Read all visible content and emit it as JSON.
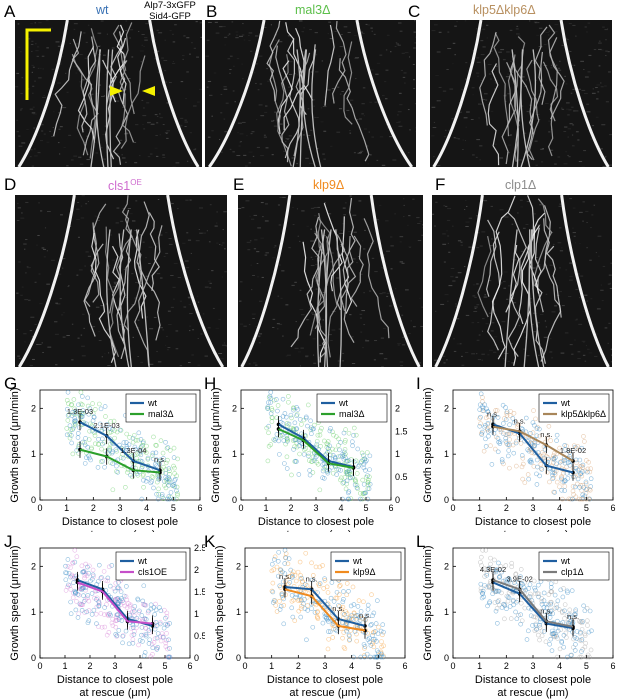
{
  "colors": {
    "wt": "#1f5fa0",
    "wt_light": "#3f8fc8",
    "mal3": "#2ca02c",
    "mal3_light": "#6ccf6c",
    "klp5klp6": "#a8865a",
    "klp5klp6_light": "#d9a679",
    "cls1": "#c54fc9",
    "cls1_light": "#d98ad9",
    "klp9": "#f08a1e",
    "klp9_light": "#f7a64a",
    "clp1": "#7b7b7b",
    "clp1_light": "#a9a9a9",
    "bracket": "#f5f100"
  },
  "kymographs": [
    {
      "id": "A",
      "letter": "A",
      "title": "wt",
      "title_color": "#3a72b4",
      "extra_label_1": "Alp7-3xGFP",
      "extra_label_2": "Sid4-GFP"
    },
    {
      "id": "B",
      "letter": "B",
      "title": "mal3Δ",
      "title_color": "#5cbf4a"
    },
    {
      "id": "C",
      "letter": "C",
      "title": "klp5Δklp6Δ",
      "title_color": "#b89060"
    },
    {
      "id": "D",
      "letter": "D",
      "title": "cls1",
      "title_sup": "OE",
      "title_color": "#cf6ccf"
    },
    {
      "id": "E",
      "letter": "E",
      "title": "klp9Δ",
      "title_color": "#f08a1e"
    },
    {
      "id": "F",
      "letter": "F",
      "title": "clp1Δ",
      "title_color": "#8c8c8c"
    }
  ],
  "common": {
    "xlabel_line1": "Distance to closest pole",
    "xlabel_line2": "at rescue (μm)",
    "ylabel": "Growth speed (μm/min)",
    "x_ticks": [
      "0",
      "1",
      "2",
      "3",
      "4",
      "5",
      "6"
    ],
    "y_ticks": [
      "0",
      "1",
      "2"
    ]
  },
  "chart_data": [
    {
      "panel": "G",
      "type": "scatter",
      "xlabel": "Distance to closest pole at rescue (μm)",
      "ylabel": "Growth speed (μm/min)",
      "xlim": [
        0,
        6
      ],
      "ylim": [
        0,
        2.4
      ],
      "x": [
        1.5,
        2.5,
        3.5,
        4.5
      ],
      "series": [
        {
          "name": "wt",
          "color": "#1f5fa0",
          "values": [
            1.7,
            1.4,
            0.85,
            0.65
          ]
        },
        {
          "name": "mal3Δ",
          "color": "#2ca02c",
          "values": [
            1.1,
            0.95,
            0.65,
            0.6
          ]
        }
      ],
      "annotations": [
        "1.3E-03",
        "2.1E-03",
        "1.3E-04",
        "n.s."
      ],
      "legend": [
        "wt",
        "mal3Δ"
      ],
      "legend_position": "top-right"
    },
    {
      "panel": "H",
      "type": "scatter",
      "xlabel": "Distance to closest pole at rescue (μm)",
      "ylabel": "Growth speed (μm/min)",
      "ylabel_right": "Growth speed (μm/min)",
      "xlim": [
        0,
        6
      ],
      "ylim": [
        0,
        2.4
      ],
      "ylim_right": [
        0,
        2.4
      ],
      "y_right_ticks": [
        "0",
        "0.5",
        "1",
        "1.5",
        "2"
      ],
      "x": [
        1.5,
        2.5,
        3.5,
        4.5
      ],
      "series": [
        {
          "name": "wt",
          "color": "#1f5fa0",
          "values": [
            1.65,
            1.35,
            0.85,
            0.72
          ]
        },
        {
          "name": "mal3Δ",
          "color": "#2ca02c",
          "values": [
            1.55,
            1.3,
            0.8,
            0.7
          ]
        }
      ],
      "legend": [
        "wt",
        "mal3Δ"
      ],
      "legend_position": "top-right"
    },
    {
      "panel": "I",
      "type": "scatter",
      "xlabel": "Distance to closest pole at rescue (μm)",
      "ylabel": "Growth speed (μm/min)",
      "xlim": [
        0,
        6
      ],
      "ylim": [
        0,
        2.4
      ],
      "x": [
        1.5,
        2.5,
        3.5,
        4.5
      ],
      "series": [
        {
          "name": "wt",
          "color": "#1f5fa0",
          "values": [
            1.65,
            1.45,
            0.75,
            0.6
          ]
        },
        {
          "name": "klp5Δklp6Δ",
          "color": "#a8865a",
          "values": [
            1.6,
            1.5,
            1.2,
            0.85
          ]
        }
      ],
      "annotations": [
        "n.s.",
        "n.s.",
        "n.s.",
        "1.8E-02"
      ],
      "legend": [
        "wt",
        "klp5Δklp6Δ"
      ],
      "legend_position": "top-right"
    },
    {
      "panel": "J",
      "type": "scatter",
      "xlabel": "Distance to closest pole at rescue (μm)",
      "ylabel": "Growth speed (μm/min)",
      "ylabel_right": "Growth speed (μm/min)",
      "xlim": [
        0,
        6
      ],
      "ylim": [
        0,
        2.4
      ],
      "ylim_right": [
        0,
        2.5
      ],
      "y_right_ticks": [
        "0",
        "0.5",
        "1",
        "1.5",
        "2",
        "2.5"
      ],
      "x": [
        1.5,
        2.5,
        3.5,
        4.5
      ],
      "series": [
        {
          "name": "wt",
          "color": "#1f5fa0",
          "values": [
            1.7,
            1.5,
            0.85,
            0.7
          ]
        },
        {
          "name": "cls1OE",
          "color": "#c54fc9",
          "values": [
            1.65,
            1.45,
            0.8,
            0.75
          ]
        }
      ],
      "legend": [
        "wt",
        "cls1OE"
      ],
      "legend_position": "top-right"
    },
    {
      "panel": "K",
      "type": "scatter",
      "xlabel": "Distance to closest pole at rescue (μm)",
      "ylabel": "Growth speed (μm/min)",
      "xlim": [
        0,
        6
      ],
      "ylim": [
        0,
        2.4
      ],
      "x": [
        1.5,
        2.5,
        3.5,
        4.5
      ],
      "series": [
        {
          "name": "wt",
          "color": "#1f5fa0",
          "values": [
            1.55,
            1.5,
            0.85,
            0.7
          ]
        },
        {
          "name": "klp9Δ",
          "color": "#f08a1e",
          "values": [
            1.5,
            1.35,
            0.7,
            0.6
          ]
        }
      ],
      "annotations": [
        "n.s.",
        "n.s.",
        "n.s.",
        "n.s."
      ],
      "legend": [
        "wt",
        "klp9Δ"
      ],
      "legend_position": "top-right"
    },
    {
      "panel": "L",
      "type": "scatter",
      "xlabel": "Distance to closest pole at rescue (μm)",
      "ylabel": "Growth speed (μm/min)",
      "xlim": [
        0,
        6
      ],
      "ylim": [
        0,
        2.4
      ],
      "x": [
        1.5,
        2.5,
        3.5,
        4.5
      ],
      "series": [
        {
          "name": "wt",
          "color": "#1f5fa0",
          "values": [
            1.65,
            1.4,
            0.75,
            0.65
          ]
        },
        {
          "name": "clp1Δ",
          "color": "#7b7b7b",
          "values": [
            1.7,
            1.5,
            0.8,
            0.68
          ]
        }
      ],
      "annotations": [
        "4.3E-02",
        "3.9E-02",
        "n.s.",
        "n.s."
      ],
      "legend": [
        "wt",
        "clp1Δ"
      ],
      "legend_position": "top-right"
    }
  ]
}
